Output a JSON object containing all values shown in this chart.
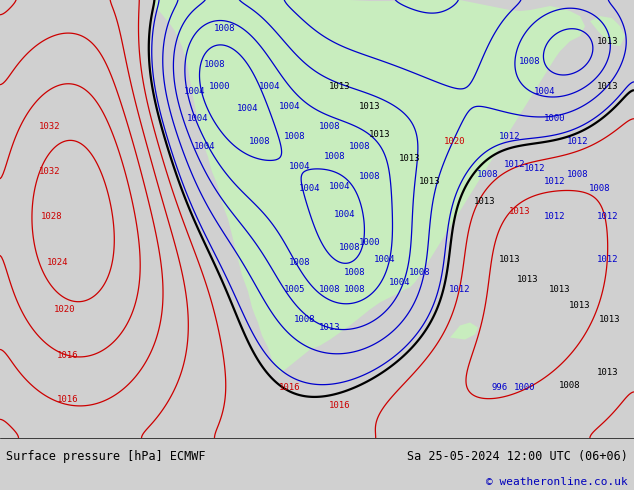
{
  "title": "Surface pressure [hPa] ECMWF",
  "subtitle": "Sa 25-05-2024 12:00 UTC (06+06)",
  "copyright": "© weatheronline.co.uk",
  "background_color": "#d0d0d0",
  "land_color": "#c8edbe",
  "fig_width": 6.34,
  "fig_height": 4.9,
  "dpi": 100,
  "title_fontsize": 8.5,
  "subtitle_fontsize": 8.5,
  "copyright_fontsize": 8.0,
  "title_color": "#000000",
  "subtitle_color": "#000000",
  "copyright_color": "#0000bb",
  "isobar_blue": "#0000cc",
  "isobar_red": "#cc0000",
  "isobar_black": "#000000",
  "label_fontsize": 6.5
}
